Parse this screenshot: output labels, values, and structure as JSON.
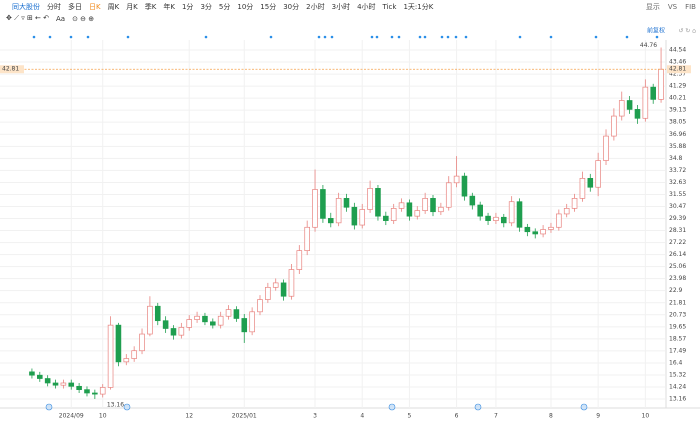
{
  "toolbar": {
    "stock": "同大股份",
    "items": [
      "分时",
      "多日",
      "日K",
      "周K",
      "月K",
      "季K",
      "年K",
      "1分",
      "3分",
      "5分",
      "10分",
      "15分",
      "30分",
      "2小时",
      "3小时",
      "4小时",
      "Tick",
      "1天:1分K"
    ],
    "active": "日K",
    "right": [
      "显示",
      "VS",
      "FIB"
    ],
    "tools": [
      "Aa"
    ],
    "adjust": "前复权"
  },
  "chart_data": {
    "type": "candlestick",
    "up_color": "#e8837f",
    "down_color": "#1f9e4f",
    "last_color": "#f5a04a",
    "open": [
      15.6,
      15.3,
      15.0,
      14.6,
      14.4,
      14.6,
      14.3,
      14.0,
      13.7,
      13.6,
      14.2,
      19.8,
      16.5,
      16.8,
      17.5,
      19.0,
      21.5,
      20.2,
      19.5,
      18.9,
      19.6,
      20.3,
      20.6,
      20.1,
      19.8,
      20.6,
      21.2,
      20.4,
      19.2,
      21.0,
      22.1,
      23.2,
      23.6,
      22.4,
      24.8,
      26.5,
      28.6,
      32.0,
      29.4,
      29.0,
      31.2,
      30.4,
      28.8,
      30.2,
      32.1,
      29.6,
      29.2,
      30.3,
      30.8,
      29.6,
      30.1,
      31.2,
      30.0,
      30.4,
      32.6,
      33.2,
      31.4,
      30.6,
      29.6,
      29.2,
      29.5,
      29.0,
      30.9,
      28.6,
      28.2,
      28.0,
      28.4,
      28.6,
      29.8,
      30.3,
      31.2,
      33.0,
      32.2,
      34.6,
      36.8,
      38.6,
      40.0,
      39.2,
      38.4,
      41.2,
      40.1
    ],
    "high": [
      15.9,
      15.6,
      15.3,
      14.9,
      14.9,
      14.9,
      14.6,
      14.3,
      14.0,
      14.5,
      20.6,
      20.0,
      17.2,
      17.9,
      19.5,
      22.4,
      21.8,
      20.6,
      19.8,
      20.0,
      20.7,
      21.0,
      20.9,
      20.4,
      21.0,
      21.6,
      21.5,
      20.8,
      21.4,
      22.5,
      23.6,
      24.0,
      23.9,
      25.3,
      27.0,
      29.2,
      33.8,
      32.4,
      29.9,
      31.7,
      31.6,
      30.8,
      30.7,
      32.8,
      32.4,
      30.0,
      30.7,
      31.2,
      31.1,
      30.5,
      31.7,
      31.5,
      30.8,
      33.2,
      35.0,
      33.5,
      31.7,
      30.9,
      29.9,
      29.9,
      29.8,
      31.4,
      31.2,
      28.9,
      28.5,
      28.8,
      29.0,
      30.2,
      30.7,
      31.6,
      33.6,
      33.4,
      35.3,
      37.4,
      39.3,
      40.8,
      40.4,
      39.6,
      41.9,
      41.5,
      44.76
    ],
    "low": [
      15.0,
      14.7,
      14.3,
      14.1,
      14.1,
      14.0,
      13.7,
      13.4,
      13.16,
      13.3,
      14.0,
      16.1,
      16.2,
      16.5,
      17.2,
      18.8,
      19.8,
      19.1,
      18.5,
      18.6,
      19.3,
      20.0,
      19.8,
      19.5,
      19.5,
      20.3,
      20.1,
      18.2,
      18.9,
      20.7,
      21.8,
      22.9,
      22.0,
      22.1,
      24.4,
      26.1,
      28.2,
      29.0,
      28.6,
      28.7,
      30.0,
      28.4,
      28.5,
      29.9,
      29.2,
      28.8,
      28.9,
      30.0,
      29.2,
      29.3,
      29.8,
      29.6,
      29.7,
      30.1,
      32.2,
      31.0,
      30.2,
      29.2,
      28.8,
      28.9,
      28.6,
      28.7,
      28.2,
      27.8,
      27.6,
      27.7,
      28.1,
      28.3,
      29.5,
      30.0,
      30.9,
      31.8,
      31.4,
      34.2,
      36.4,
      38.2,
      38.8,
      37.9,
      38.1,
      39.7,
      39.8
    ],
    "close": [
      15.3,
      15.0,
      14.6,
      14.4,
      14.6,
      14.3,
      14.0,
      13.7,
      13.6,
      14.2,
      19.8,
      16.5,
      16.8,
      17.5,
      19.0,
      21.5,
      20.2,
      19.5,
      18.9,
      19.6,
      20.3,
      20.6,
      20.1,
      19.8,
      20.6,
      21.2,
      20.4,
      19.2,
      21.0,
      22.1,
      23.2,
      23.6,
      22.4,
      24.8,
      26.5,
      28.6,
      32.0,
      29.4,
      29.0,
      31.2,
      30.4,
      28.8,
      30.2,
      32.1,
      29.6,
      29.2,
      30.3,
      30.8,
      29.6,
      30.1,
      31.2,
      30.0,
      30.4,
      32.6,
      33.2,
      31.4,
      30.6,
      29.6,
      29.2,
      29.5,
      29.0,
      30.9,
      28.6,
      28.2,
      28.0,
      28.4,
      28.6,
      29.8,
      30.3,
      31.2,
      33.0,
      32.2,
      34.6,
      36.8,
      38.6,
      40.0,
      39.2,
      38.4,
      41.2,
      40.1,
      42.81
    ],
    "xlim": [
      -0.5,
      80.5
    ],
    "xticks": [
      {
        "value": 5,
        "label": "2024/09"
      },
      {
        "value": 9,
        "label": "10"
      },
      {
        "value": 20,
        "label": "12"
      },
      {
        "value": 27,
        "label": "2025/01"
      },
      {
        "value": 36,
        "label": "3"
      },
      {
        "value": 42,
        "label": "4"
      },
      {
        "value": 48,
        "label": "5"
      },
      {
        "value": 54,
        "label": "6"
      },
      {
        "value": 59,
        "label": "7"
      },
      {
        "value": 66,
        "label": "8"
      },
      {
        "value": 72,
        "label": "9"
      },
      {
        "value": 78,
        "label": "10"
      }
    ],
    "ylim": [
      12.62,
      45.26
    ],
    "yticks": [
      44.54,
      43.46,
      42.37,
      41.29,
      40.21,
      39.13,
      38.05,
      36.96,
      35.88,
      34.8,
      33.72,
      32.63,
      31.55,
      30.47,
      29.39,
      28.31,
      27.22,
      26.14,
      25.06,
      23.98,
      22.9,
      21.81,
      20.73,
      19.65,
      18.57,
      17.49,
      16.4,
      15.32,
      14.24,
      13.16
    ],
    "grid": true
  }
}
